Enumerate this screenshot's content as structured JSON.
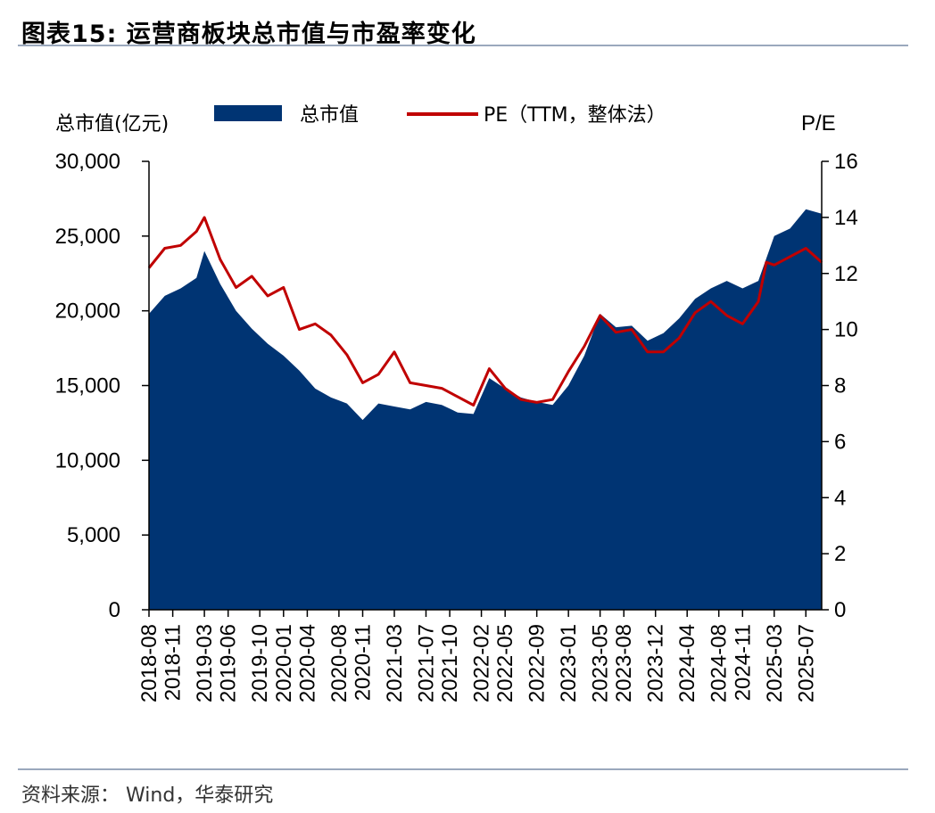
{
  "header": {
    "title": "图表15:  运营商板块总市值与市盈率变化"
  },
  "footer": {
    "source": "资料来源：  Wind，华泰研究"
  },
  "chart_data": {
    "type": "area",
    "title": "运营商板块总市值与市盈率变化",
    "ylabel_left": "总市值(亿元)",
    "ylabel_right": "P/E",
    "ylim_left": [
      0,
      30000
    ],
    "ylim_right": [
      0,
      16
    ],
    "yticks_left": [
      "0",
      "5,000",
      "10,000",
      "15,000",
      "20,000",
      "25,000",
      "30,000"
    ],
    "yticks_right": [
      "0",
      "2",
      "4",
      "6",
      "8",
      "10",
      "12",
      "14",
      "16"
    ],
    "x_tick_labels": [
      "2018-08",
      "2018-11",
      "2019-03",
      "2019-06",
      "2019-10",
      "2020-01",
      "2020-04",
      "2020-08",
      "2020-11",
      "2021-03",
      "2021-07",
      "2021-10",
      "2022-02",
      "2022-05",
      "2022-09",
      "2023-01",
      "2023-05",
      "2023-08",
      "2023-12",
      "2024-04",
      "2024-08",
      "2024-11",
      "2025-03",
      "2025-07"
    ],
    "legend": "top",
    "colors": {
      "market_cap": "#003473",
      "pe": "#c00000"
    },
    "series": [
      {
        "name": "总市值",
        "axis": "left",
        "type": "area",
        "x": [
          "2018-08",
          "2018-10",
          "2018-12",
          "2019-02",
          "2019-03",
          "2019-05",
          "2019-07",
          "2019-09",
          "2019-11",
          "2020-01",
          "2020-03",
          "2020-05",
          "2020-07",
          "2020-09",
          "2020-11",
          "2021-01",
          "2021-03",
          "2021-05",
          "2021-07",
          "2021-09",
          "2021-11",
          "2022-01",
          "2022-03",
          "2022-05",
          "2022-07",
          "2022-09",
          "2022-11",
          "2023-01",
          "2023-03",
          "2023-05",
          "2023-07",
          "2023-09",
          "2023-11",
          "2024-01",
          "2024-03",
          "2024-05",
          "2024-07",
          "2024-09",
          "2024-11",
          "2025-01",
          "2025-02",
          "2025-03",
          "2025-05",
          "2025-07",
          "2025-09"
        ],
        "values": [
          19800,
          21000,
          21500,
          22200,
          24000,
          21800,
          20000,
          18800,
          17800,
          17000,
          16000,
          14800,
          14200,
          13800,
          12700,
          13800,
          13600,
          13400,
          13900,
          13700,
          13200,
          13100,
          15500,
          14800,
          14200,
          13900,
          13700,
          15000,
          17000,
          19800,
          18900,
          19000,
          18000,
          18500,
          19500,
          20800,
          21500,
          22000,
          21500,
          22000,
          23500,
          25000,
          25500,
          26800,
          26500
        ]
      },
      {
        "name": "PE（TTM，整体法）",
        "axis": "right",
        "type": "line",
        "x": [
          "2018-08",
          "2018-10",
          "2018-12",
          "2019-02",
          "2019-03",
          "2019-05",
          "2019-07",
          "2019-09",
          "2019-11",
          "2020-01",
          "2020-03",
          "2020-05",
          "2020-07",
          "2020-09",
          "2020-11",
          "2021-01",
          "2021-03",
          "2021-05",
          "2021-07",
          "2021-09",
          "2021-11",
          "2022-01",
          "2022-03",
          "2022-05",
          "2022-07",
          "2022-09",
          "2022-11",
          "2023-01",
          "2023-03",
          "2023-05",
          "2023-07",
          "2023-09",
          "2023-11",
          "2024-01",
          "2024-03",
          "2024-05",
          "2024-07",
          "2024-09",
          "2024-11",
          "2025-01",
          "2025-02",
          "2025-03",
          "2025-05",
          "2025-07",
          "2025-09"
        ],
        "values": [
          12.2,
          12.9,
          13.0,
          13.5,
          14.0,
          12.5,
          11.5,
          11.9,
          11.2,
          11.5,
          10.0,
          10.2,
          9.8,
          9.1,
          8.1,
          8.4,
          9.2,
          8.1,
          8.0,
          7.9,
          7.6,
          7.3,
          8.6,
          7.9,
          7.5,
          7.4,
          7.5,
          8.5,
          9.4,
          10.5,
          9.9,
          10.0,
          9.2,
          9.2,
          9.7,
          10.6,
          11.0,
          10.5,
          10.2,
          11.0,
          12.4,
          12.3,
          12.6,
          12.9,
          12.4
        ]
      }
    ]
  }
}
